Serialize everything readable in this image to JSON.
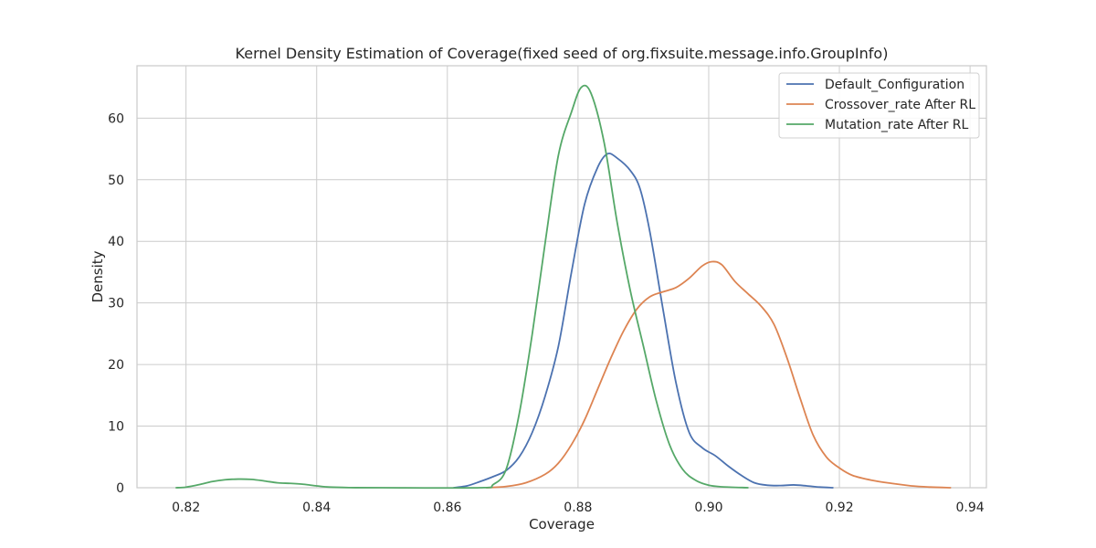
{
  "chart_data": {
    "type": "line",
    "title": "Kernel Density Estimation of Coverage(fixed seed of org.fixsuite.message.info.GroupInfo)",
    "xlabel": "Coverage",
    "ylabel": "Density",
    "xlim": [
      0.8125,
      0.9425
    ],
    "ylim": [
      0,
      68.5
    ],
    "xticks": [
      0.82,
      0.84,
      0.86,
      0.88,
      0.9,
      0.92,
      0.94
    ],
    "xtick_labels": [
      "0.82",
      "0.84",
      "0.86",
      "0.88",
      "0.90",
      "0.92",
      "0.94"
    ],
    "yticks": [
      0,
      10,
      20,
      30,
      40,
      50,
      60
    ],
    "ytick_labels": [
      "0",
      "10",
      "20",
      "30",
      "40",
      "50",
      "60"
    ],
    "grid": true,
    "legend_position": "top-right",
    "series": [
      {
        "name": "Default_Configuration",
        "color": "#4c72b0",
        "points": [
          [
            0.861,
            0
          ],
          [
            0.863,
            0.3
          ],
          [
            0.865,
            1.0
          ],
          [
            0.867,
            1.8
          ],
          [
            0.869,
            2.8
          ],
          [
            0.871,
            5.0
          ],
          [
            0.873,
            9.0
          ],
          [
            0.875,
            15.0
          ],
          [
            0.877,
            23.0
          ],
          [
            0.879,
            35.0
          ],
          [
            0.881,
            46.0
          ],
          [
            0.883,
            52.0
          ],
          [
            0.8845,
            54.2
          ],
          [
            0.886,
            53.5
          ],
          [
            0.888,
            51.5
          ],
          [
            0.8895,
            48.5
          ],
          [
            0.891,
            41.5
          ],
          [
            0.893,
            29.0
          ],
          [
            0.895,
            17.0
          ],
          [
            0.897,
            9.0
          ],
          [
            0.899,
            6.5
          ],
          [
            0.901,
            5.2
          ],
          [
            0.903,
            3.5
          ],
          [
            0.905,
            2.0
          ],
          [
            0.907,
            0.8
          ],
          [
            0.909,
            0.4
          ],
          [
            0.911,
            0.35
          ],
          [
            0.913,
            0.45
          ],
          [
            0.915,
            0.3
          ],
          [
            0.917,
            0.1
          ],
          [
            0.919,
            0
          ]
        ]
      },
      {
        "name": "Crossover_rate After RL",
        "color": "#dd8452",
        "points": [
          [
            0.866,
            0
          ],
          [
            0.869,
            0.2
          ],
          [
            0.872,
            0.8
          ],
          [
            0.875,
            2.2
          ],
          [
            0.877,
            4.0
          ],
          [
            0.879,
            7.0
          ],
          [
            0.881,
            11.0
          ],
          [
            0.883,
            16.0
          ],
          [
            0.885,
            21.0
          ],
          [
            0.887,
            25.5
          ],
          [
            0.889,
            29.0
          ],
          [
            0.891,
            31.0
          ],
          [
            0.893,
            31.8
          ],
          [
            0.895,
            32.5
          ],
          [
            0.897,
            34.0
          ],
          [
            0.899,
            36.0
          ],
          [
            0.9005,
            36.7
          ],
          [
            0.902,
            36.2
          ],
          [
            0.904,
            33.5
          ],
          [
            0.906,
            31.5
          ],
          [
            0.908,
            29.5
          ],
          [
            0.91,
            26.5
          ],
          [
            0.912,
            21.0
          ],
          [
            0.914,
            14.5
          ],
          [
            0.916,
            8.5
          ],
          [
            0.918,
            5.0
          ],
          [
            0.92,
            3.2
          ],
          [
            0.922,
            2.0
          ],
          [
            0.925,
            1.2
          ],
          [
            0.928,
            0.7
          ],
          [
            0.931,
            0.3
          ],
          [
            0.934,
            0.1
          ],
          [
            0.937,
            0
          ]
        ]
      },
      {
        "name": "Mutation_rate After RL",
        "color": "#55a868",
        "points": [
          [
            0.8185,
            0
          ],
          [
            0.82,
            0.1
          ],
          [
            0.822,
            0.5
          ],
          [
            0.824,
            1.0
          ],
          [
            0.826,
            1.3
          ],
          [
            0.828,
            1.4
          ],
          [
            0.83,
            1.35
          ],
          [
            0.832,
            1.1
          ],
          [
            0.834,
            0.8
          ],
          [
            0.836,
            0.7
          ],
          [
            0.838,
            0.55
          ],
          [
            0.84,
            0.3
          ],
          [
            0.842,
            0.1
          ],
          [
            0.845,
            0.02
          ],
          [
            0.85,
            0
          ],
          [
            0.865,
            0
          ],
          [
            0.867,
            0.5
          ],
          [
            0.869,
            3.0
          ],
          [
            0.871,
            12.0
          ],
          [
            0.873,
            25.0
          ],
          [
            0.875,
            40.0
          ],
          [
            0.877,
            54.0
          ],
          [
            0.879,
            61.0
          ],
          [
            0.8805,
            65.0
          ],
          [
            0.882,
            64.0
          ],
          [
            0.884,
            56.0
          ],
          [
            0.886,
            43.0
          ],
          [
            0.888,
            32.0
          ],
          [
            0.89,
            23.0
          ],
          [
            0.892,
            14.0
          ],
          [
            0.894,
            7.0
          ],
          [
            0.896,
            3.0
          ],
          [
            0.898,
            1.2
          ],
          [
            0.9,
            0.4
          ],
          [
            0.902,
            0.15
          ],
          [
            0.906,
            0
          ]
        ]
      }
    ]
  }
}
